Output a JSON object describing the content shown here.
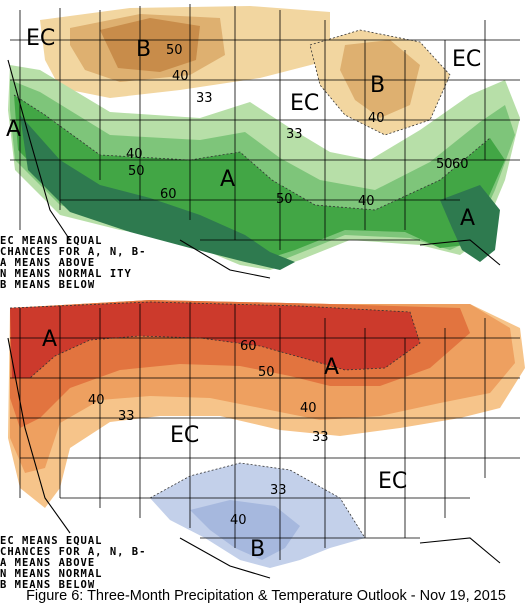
{
  "precip_map": {
    "labels": {
      "ec_northwest": "EC",
      "b_northern_rockies": "B",
      "n50_north": "50",
      "n40_north": "40",
      "n33_north": "33",
      "ec_central": "EC",
      "b_great_lakes": "B",
      "n40_great_lakes": "40",
      "ec_northeast": "EC",
      "a_west_coast": "A",
      "n33_central": "33",
      "n40_south": "40",
      "n50_south": "50",
      "a_southern_plains": "A",
      "n60_south": "60",
      "n50_texas": "50",
      "n40_gulf": "40",
      "n50_southeast": "50",
      "n60_southeast": "60",
      "a_florida": "A"
    },
    "colors": {
      "above_33": "#b7dfa8",
      "above_40": "#7ec57a",
      "above_50": "#42a645",
      "above_60": "#2e7a4f",
      "below_33": "#f2d6a0",
      "below_40": "#deb070",
      "below_50": "#c88c4a"
    }
  },
  "temp_map": {
    "labels": {
      "a_northwest": "A",
      "n60_north": "60",
      "n50_north": "50",
      "a_great_lakes": "A",
      "n40_west": "40",
      "n33_west": "33",
      "n40_central": "40",
      "n33_central": "33",
      "ec_southwest": "EC",
      "ec_southeast": "EC",
      "n33_south": "33",
      "n40_texas": "40",
      "b_texas": "B"
    },
    "colors": {
      "above_33": "#f6c48a",
      "above_40": "#eea060",
      "above_50": "#e2743f",
      "above_60": "#cc3a2c",
      "below_33": "#c3d0ea",
      "below_40": "#a6b8de"
    }
  },
  "legend_precip": {
    "line1": "EC MEANS EQUAL",
    "line2": "CHANCES FOR A, N, B-",
    "line3": "A MEANS ABOVE",
    "line4": "N MEANS NORMAL",
    "line4_suffix": "ITY",
    "line5": "B MEANS BELOW"
  },
  "legend_temp": {
    "line1": "EC MEANS EQUAL",
    "line2": "CHANCES FOR A, N, B-",
    "line3": "A MEANS ABOVE",
    "line4": "N MEANS NORMAL",
    "line5": "B MEANS BELOW"
  },
  "caption": "Figure 6: Three-Month Precipitation & Temperature Outlook - Nov 19, 2015"
}
